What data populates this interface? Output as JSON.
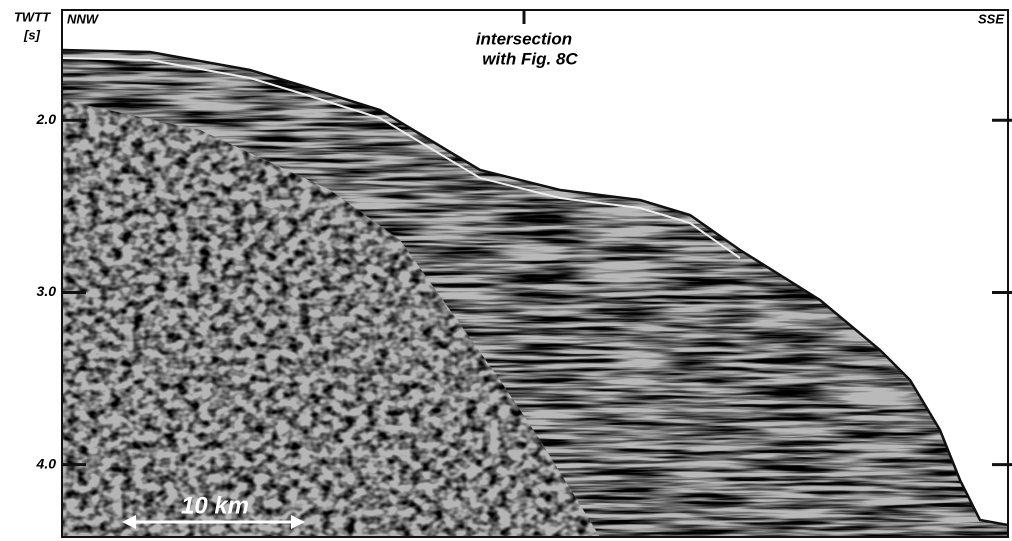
{
  "axis": {
    "label_lines": [
      "TWTT",
      "[s]"
    ],
    "ylim": [
      1.36,
      4.42
    ],
    "ticks": [
      {
        "value": 2,
        "label": "2.0"
      },
      {
        "value": 3,
        "label": "3.0"
      },
      {
        "value": 4,
        "label": "4.0"
      }
    ]
  },
  "orientation": {
    "left": "NNW",
    "right": "SSE"
  },
  "annotation": [
    "intersection",
    "with Fig. 8C"
  ],
  "scale_bar": "10 km"
}
